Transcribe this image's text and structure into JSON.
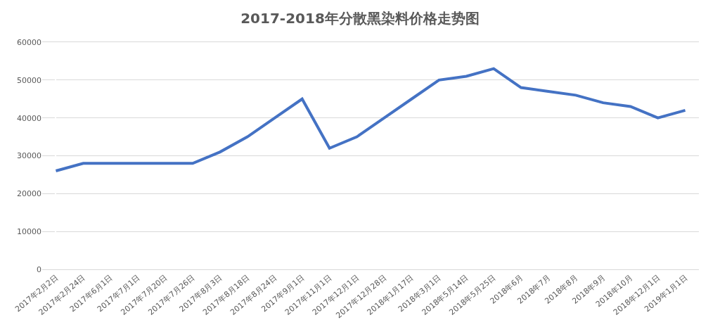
{
  "chart_data": {
    "type": "line",
    "title": "2017-2018年分散黑染料价格走势图",
    "categories": [
      "2017年2月2日",
      "2017年2月24日",
      "2017年6月1日",
      "2017年7月1日",
      "2017年7月20日",
      "2017年7月26日",
      "2017年8月3日",
      "2017年8月18日",
      "2017年8月24日",
      "2017年9月1日",
      "2017年11月1日",
      "2017年12月1日",
      "2017年12月28日",
      "2018年1月17日",
      "2018年3月1日",
      "2018年5月14日",
      "2018年5月25日",
      "2018年6月",
      "2018年7月",
      "2018年8月",
      "2018年9月",
      "2018年10月",
      "2018年12月1日",
      "2019年1月1日"
    ],
    "series": [
      {
        "color": "#4472c4",
        "values": [
          26000,
          28000,
          28000,
          28000,
          28000,
          28000,
          31000,
          35000,
          40000,
          45000,
          32000,
          35000,
          40000,
          45000,
          50000,
          51000,
          53000,
          48000,
          47000,
          46000,
          44000,
          43000,
          40000,
          42000
        ]
      }
    ],
    "ylim": [
      0,
      60000
    ],
    "yticks": [
      0,
      10000,
      20000,
      30000,
      40000,
      50000,
      60000
    ],
    "grid": "y",
    "line_style": "solid"
  }
}
